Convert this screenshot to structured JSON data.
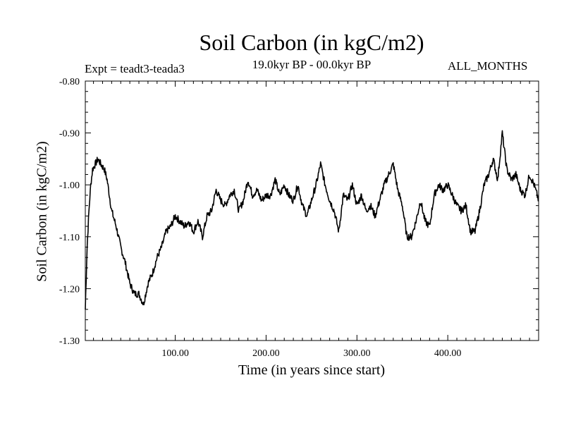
{
  "chart_data": {
    "type": "line",
    "title": "Soil Carbon (in kgC/m2)",
    "subtitle": "19.0kyr BP - 00.0kyr BP",
    "left_annotation": "Expt = teadt3-teada3",
    "right_annotation": "ALL_MONTHS",
    "xlabel": "Time (in years since start)",
    "ylabel": "Soil Carbon (in kgC/m2)",
    "xlim": [
      1,
      500
    ],
    "ylim": [
      -1.3,
      -0.8
    ],
    "grid": false,
    "x_ticks": [
      100,
      200,
      300,
      400
    ],
    "x_tick_labels": [
      "100.00",
      "200.00",
      "300.00",
      "400.00"
    ],
    "y_ticks": [
      -0.8,
      -0.9,
      -1.0,
      -1.1,
      -1.2,
      -1.3
    ],
    "y_tick_labels": [
      "-0.80",
      "-0.90",
      "-1.00",
      "-1.10",
      "-1.20",
      "-1.30"
    ],
    "series": [
      {
        "name": "Soil Carbon",
        "color": "#000000",
        "x": [
          1,
          3,
          5,
          7,
          9,
          12,
          15,
          18,
          22,
          25,
          30,
          35,
          40,
          45,
          50,
          55,
          60,
          65,
          70,
          75,
          80,
          85,
          90,
          95,
          100,
          105,
          110,
          115,
          120,
          125,
          130,
          135,
          140,
          145,
          150,
          155,
          160,
          165,
          170,
          175,
          180,
          185,
          190,
          195,
          200,
          205,
          210,
          215,
          220,
          225,
          230,
          235,
          240,
          245,
          250,
          255,
          260,
          265,
          270,
          275,
          280,
          285,
          290,
          295,
          300,
          305,
          310,
          315,
          320,
          325,
          330,
          335,
          340,
          345,
          350,
          355,
          360,
          365,
          370,
          375,
          380,
          385,
          390,
          395,
          400,
          405,
          410,
          415,
          420,
          425,
          430,
          435,
          440,
          445,
          450,
          455,
          460,
          465,
          470,
          475,
          480,
          485,
          490,
          495,
          500
        ],
        "y": [
          -1.24,
          -1.12,
          -1.05,
          -1.0,
          -0.97,
          -0.96,
          -0.95,
          -0.96,
          -0.97,
          -0.99,
          -1.05,
          -1.08,
          -1.12,
          -1.15,
          -1.19,
          -1.21,
          -1.21,
          -1.23,
          -1.19,
          -1.17,
          -1.14,
          -1.12,
          -1.09,
          -1.08,
          -1.06,
          -1.07,
          -1.08,
          -1.07,
          -1.09,
          -1.07,
          -1.1,
          -1.06,
          -1.05,
          -1.01,
          -1.03,
          -1.04,
          -1.02,
          -1.01,
          -1.05,
          -1.03,
          -0.99,
          -1.02,
          -1.01,
          -1.03,
          -1.02,
          -1.02,
          -0.99,
          -1.02,
          -1.0,
          -1.02,
          -1.03,
          -1.0,
          -1.04,
          -1.06,
          -1.03,
          -1.0,
          -0.96,
          -1.0,
          -1.03,
          -1.05,
          -1.09,
          -1.02,
          -1.03,
          -1.0,
          -1.04,
          -1.02,
          -1.05,
          -1.04,
          -1.06,
          -1.03,
          -1.0,
          -0.98,
          -0.96,
          -1.01,
          -1.04,
          -1.1,
          -1.1,
          -1.07,
          -1.03,
          -1.07,
          -1.08,
          -1.02,
          -1.0,
          -1.01,
          -1.0,
          -1.02,
          -1.04,
          -1.05,
          -1.04,
          -1.09,
          -1.09,
          -1.05,
          -1.0,
          -0.98,
          -0.95,
          -0.99,
          -0.9,
          -0.97,
          -0.99,
          -0.98,
          -1.01,
          -1.02,
          -0.98,
          -1.0,
          -1.03
        ]
      }
    ]
  }
}
